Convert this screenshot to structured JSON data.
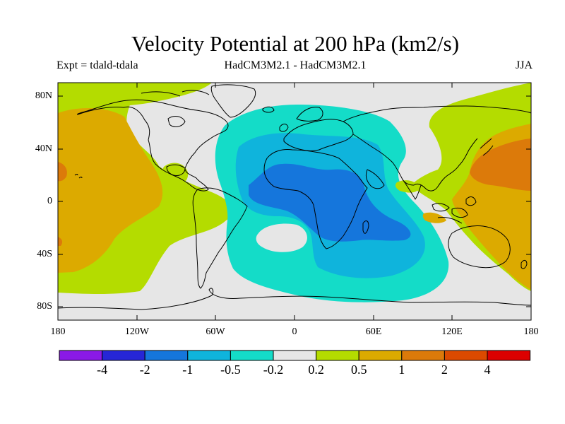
{
  "title": "Velocity Potential at 200 hPa (km2/s)",
  "experiment_label": "Expt = tdald-tdala",
  "models_label": "HadCM3M2.1 - HadCM3M2.1",
  "season_label": "JJA",
  "lat_ticks": [
    "80N",
    "40N",
    "0",
    "40S",
    "80S"
  ],
  "lon_ticks": [
    "180",
    "120W",
    "60W",
    "0",
    "60E",
    "120E",
    "180"
  ],
  "colorbar": {
    "labels": [
      "-4",
      "-2",
      "-1",
      "-0.5",
      "-0.2",
      "0.2",
      "0.5",
      "1",
      "2",
      "4"
    ],
    "colors": [
      "#8a19e6",
      "#2626d6",
      "#1576dc",
      "#0fb4dc",
      "#14dcc8",
      "#e6e6e6",
      "#b4dc00",
      "#dcaa00",
      "#dc7a0a",
      "#dc4a00",
      "#dc0000"
    ]
  },
  "map_colors": {
    "ocean_background": "#e6e6e6",
    "positive_0_2_to_0_5": "#b4dc00",
    "positive_0_5_to_1": "#dcaa00",
    "positive_1_to_2": "#dc7a0a",
    "negative_0_2_to_0_5": "#14dcc8",
    "negative_0_5_to_1": "#0fb4dc",
    "negative_1_to_2": "#1576dc"
  }
}
